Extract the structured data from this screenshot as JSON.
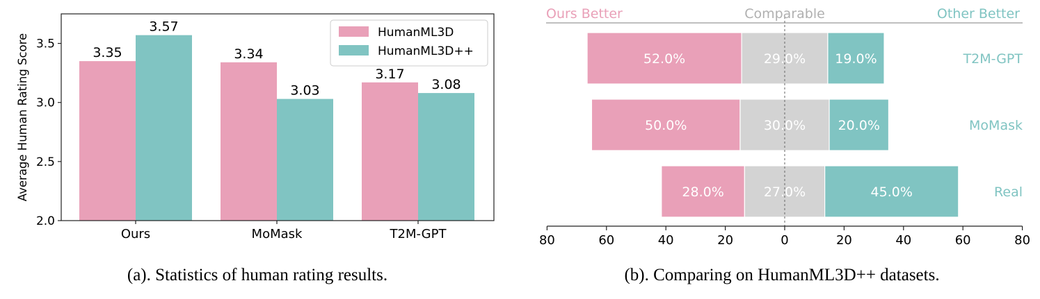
{
  "chart_data": [
    {
      "type": "bar",
      "caption": "(a). Statistics of human rating results.",
      "categories": [
        "Ours",
        "MoMask",
        "T2M-GPT"
      ],
      "series": [
        {
          "name": "HumanML3D",
          "values": [
            3.35,
            3.34,
            3.17
          ],
          "label_text": [
            "3.35",
            "3.34",
            "3.17"
          ]
        },
        {
          "name": "HumanML3D++",
          "values": [
            3.57,
            3.03,
            3.08
          ],
          "label_text": [
            "3.57",
            "3.03",
            "3.08"
          ]
        }
      ],
      "ylabel": "Average Human Rating Score",
      "xlabel": "",
      "ylim": [
        2.0,
        3.75
      ],
      "yticks": [
        2.0,
        2.5,
        3.0,
        3.5
      ],
      "ytick_labels": [
        "2.0",
        "2.5",
        "3.0",
        "3.5"
      ],
      "legend_position": "top-right",
      "grid": false
    },
    {
      "type": "bar",
      "orientation": "horizontal-stacked-diverging",
      "caption": "(b). Comparing on HumanML3D++ datasets.",
      "categories": [
        "T2M-GPT",
        "MoMask",
        "Real"
      ],
      "series": [
        {
          "name": "Ours Better",
          "values": [
            52.0,
            50.0,
            28.0
          ],
          "label_text": [
            "52.0%",
            "50.0%",
            "28.0%"
          ]
        },
        {
          "name": "Comparable",
          "values": [
            29.0,
            30.0,
            27.0
          ],
          "label_text": [
            "29.0%",
            "30.0%",
            "27.0%"
          ]
        },
        {
          "name": "Other Better",
          "values": [
            19.0,
            20.0,
            45.0
          ],
          "label_text": [
            "19.0%",
            "20.0%",
            "45.0%"
          ]
        }
      ],
      "header_labels": [
        "Ours Better",
        "Comparable",
        "Other Better"
      ],
      "xlim": [
        -80,
        80
      ],
      "xticks": [
        -80,
        -60,
        -40,
        -20,
        0,
        20,
        40,
        60,
        80
      ],
      "xtick_labels": [
        "80",
        "60",
        "40",
        "20",
        "0",
        "20",
        "40",
        "60",
        "80"
      ],
      "grid": false
    }
  ],
  "colors": {
    "pink": "#e9a0b8",
    "teal": "#80c4c2",
    "gray": "#d3d3d3",
    "axis": "#222222",
    "header_gray": "#b0b0b0",
    "white": "#ffffff"
  }
}
